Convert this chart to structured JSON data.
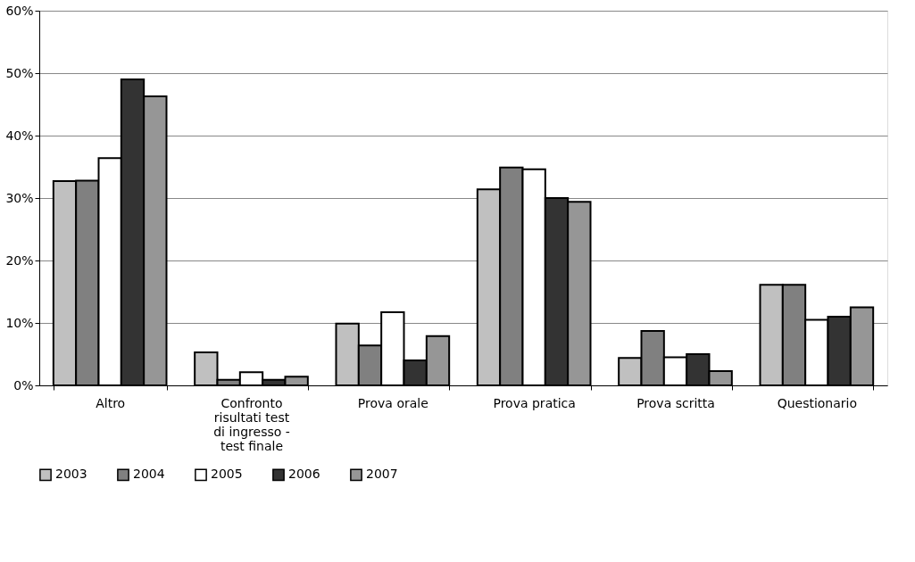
{
  "chart_data": {
    "type": "bar",
    "categories": [
      "Altro",
      "Confronto risultati test di ingresso - test finale",
      "Prova orale",
      "Prova pratica",
      "Prova scritta",
      "Questionario"
    ],
    "series": [
      {
        "name": "2003",
        "color": "#c0c0c0",
        "values": [
          32.7,
          5.3,
          9.9,
          31.4,
          4.4,
          16.1
        ]
      },
      {
        "name": "2004",
        "color": "#808080",
        "values": [
          32.8,
          0.9,
          6.4,
          34.9,
          8.7,
          16.1
        ]
      },
      {
        "name": "2005",
        "color": "#ffffff",
        "values": [
          36.4,
          2.1,
          11.7,
          34.6,
          4.5,
          10.5
        ]
      },
      {
        "name": "2006",
        "color": "#333333",
        "values": [
          49.0,
          0.9,
          4.0,
          30.0,
          5.0,
          11.0
        ]
      },
      {
        "name": "2007",
        "color": "#969696",
        "values": [
          46.3,
          1.4,
          7.9,
          29.4,
          2.3,
          12.5
        ]
      }
    ],
    "ylim": [
      0,
      60
    ],
    "yticks": [
      {
        "value": 0,
        "label": "0%"
      },
      {
        "value": 10,
        "label": "10%"
      },
      {
        "value": 20,
        "label": "20%"
      },
      {
        "value": 30,
        "label": "30%"
      },
      {
        "value": 40,
        "label": "40%"
      },
      {
        "value": 50,
        "label": "50%"
      },
      {
        "value": 60,
        "label": "60%"
      }
    ],
    "grid": "y",
    "legend": "bottom"
  }
}
